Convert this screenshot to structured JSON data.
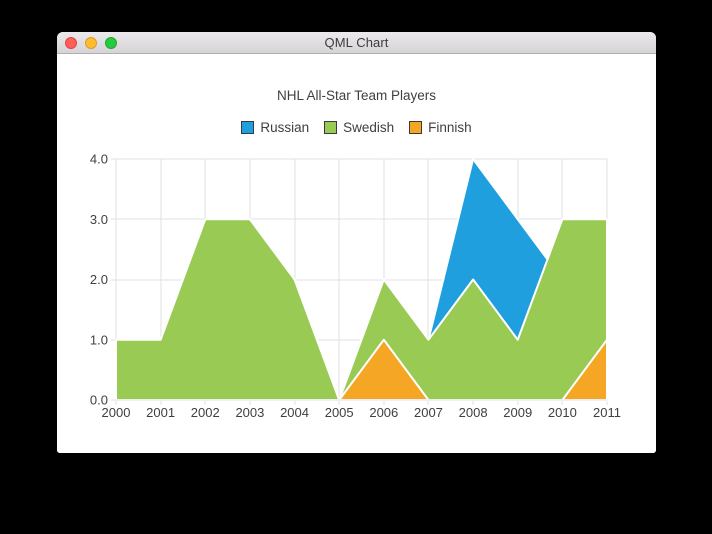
{
  "window": {
    "title": "QML Chart",
    "controls": {
      "close": "close",
      "minimize": "minimize",
      "zoom": "zoom"
    }
  },
  "chart_data": {
    "type": "area",
    "title": "NHL All-Star Team Players",
    "x": [
      2000,
      2001,
      2002,
      2003,
      2004,
      2005,
      2006,
      2007,
      2008,
      2009,
      2010,
      2011
    ],
    "xlabel": "",
    "ylabel": "",
    "ylim": [
      0,
      4
    ],
    "yticks": [
      0,
      1,
      2,
      3,
      4
    ],
    "ytick_labels": [
      "0.0",
      "1.0",
      "2.0",
      "3.0",
      "4.0"
    ],
    "grid": true,
    "legend_position": "top",
    "paint_order": "Russian painted first (bottom layer), then Swedish, then Finnish on top; each area fills from 0 up to its value",
    "series": [
      {
        "name": "Russian",
        "color": "#209fdf",
        "values": [
          1,
          1,
          1,
          1,
          1,
          0,
          1,
          1,
          4,
          3,
          2,
          1
        ]
      },
      {
        "name": "Swedish",
        "color": "#99ca53",
        "values": [
          1,
          1,
          3,
          3,
          2,
          0,
          2,
          1,
          2,
          1,
          3,
          3
        ]
      },
      {
        "name": "Finnish",
        "color": "#f6a625",
        "values": [
          0,
          0,
          0,
          0,
          0,
          0,
          1,
          0,
          0,
          0,
          0,
          1
        ]
      }
    ],
    "area_outline_color": "#ffffff",
    "grid_color": "#e2e2e2",
    "axis_label_color": "#404044",
    "legend_marker_border": "#3a3a3e"
  }
}
